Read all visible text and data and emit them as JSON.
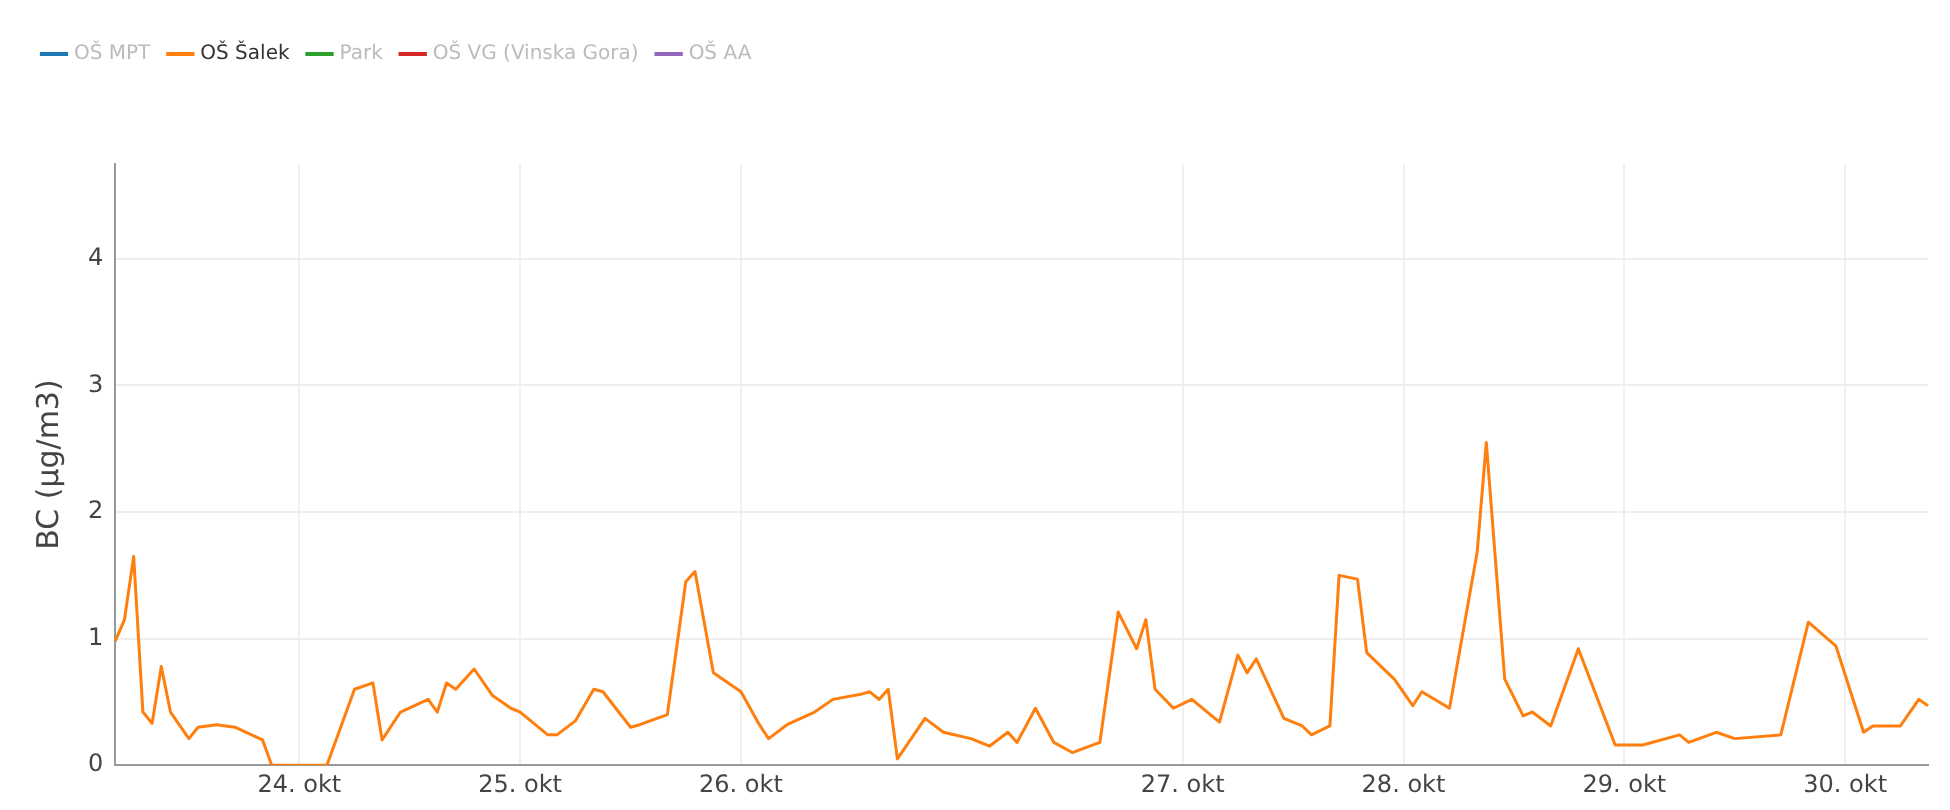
{
  "chart_data": {
    "type": "line",
    "ylabel": "BC (μg/m3)",
    "legend": "top left",
    "grid": true,
    "marker": "none",
    "line_style": "solid",
    "categories": [
      null,
      null,
      null,
      null,
      null,
      null,
      null,
      null,
      null,
      null,
      null,
      null,
      null,
      null,
      null,
      null,
      null,
      null,
      null,
      null,
      "24. okt",
      null,
      null,
      null,
      null,
      null,
      null,
      null,
      null,
      null,
      null,
      null,
      null,
      null,
      null,
      null,
      null,
      null,
      null,
      null,
      null,
      null,
      null,
      null,
      "25. okt",
      null,
      null,
      null,
      null,
      null,
      null,
      null,
      null,
      null,
      null,
      null,
      null,
      null,
      null,
      null,
      null,
      null,
      null,
      null,
      null,
      null,
      null,
      null,
      "26. okt",
      null,
      null,
      null,
      null,
      null,
      null,
      null,
      null,
      null,
      null,
      null,
      null,
      null,
      null,
      null,
      null,
      null,
      null,
      null,
      null,
      null,
      null,
      null,
      null,
      null,
      null,
      null,
      null,
      null,
      null,
      null,
      null,
      null,
      null,
      null,
      null,
      null,
      null,
      null,
      null,
      null,
      null,
      null,
      null,
      null,
      null,
      null,
      "27. okt",
      null,
      null,
      null,
      null,
      null,
      null,
      null,
      null,
      null,
      null,
      null,
      null,
      null,
      null,
      null,
      null,
      null,
      null,
      null,
      null,
      null,
      null,
      null,
      "28. okt",
      null,
      null,
      null,
      null,
      null,
      null,
      null,
      null,
      null,
      null,
      null,
      null,
      null,
      null,
      null,
      null,
      null,
      null,
      null,
      null,
      null,
      null,
      null,
      "29. okt",
      null,
      null,
      null,
      null,
      null,
      null,
      null,
      null,
      null,
      null,
      null,
      null,
      null,
      null,
      null,
      null,
      null,
      null,
      null,
      null,
      null,
      null,
      null,
      "30. okt",
      null,
      null,
      null,
      null,
      null,
      null,
      null,
      null,
      null
    ],
    "ylim": [
      0,
      4.75
    ],
    "yticks": [
      0,
      1,
      2,
      3,
      4
    ],
    "series": [
      {
        "name": "OŠ MPT",
        "color": "#1f77b4",
        "values": [
          null,
          null,
          null,
          null,
          null,
          null,
          null,
          null,
          null,
          null,
          null,
          null,
          null,
          null,
          null,
          null,
          null,
          null,
          null,
          null,
          null,
          null,
          null,
          null,
          null,
          null,
          null,
          null,
          null,
          null,
          null,
          null,
          null,
          null,
          null,
          null,
          null,
          null,
          null,
          null,
          null,
          null,
          null,
          null,
          null,
          null,
          null,
          null,
          null,
          null,
          null,
          null,
          null,
          null,
          null,
          null,
          null,
          null,
          null,
          null,
          null,
          null,
          null,
          null,
          null,
          null,
          null,
          null,
          null,
          null,
          null,
          null,
          null,
          null,
          null,
          null,
          null,
          null,
          null,
          null,
          null,
          null,
          null,
          null,
          null,
          null,
          null,
          null,
          null,
          null,
          null,
          null,
          null,
          null,
          null,
          null,
          null,
          null,
          null,
          null,
          null,
          null,
          null,
          null,
          null,
          null,
          null,
          null,
          null,
          null,
          null,
          null,
          null,
          null,
          null,
          null,
          null,
          null,
          null,
          null,
          null,
          null,
          null,
          null,
          null,
          null,
          null,
          null,
          null,
          null,
          null,
          null,
          null,
          null,
          null,
          null,
          null,
          null,
          null,
          null,
          null,
          null,
          null,
          null,
          null,
          null,
          null,
          null,
          null,
          null,
          null,
          null,
          null,
          null,
          null,
          null,
          null,
          null,
          null,
          null,
          null,
          null,
          null,
          null,
          null,
          null,
          null,
          null,
          null,
          null,
          null,
          null,
          null,
          null,
          null,
          null,
          null,
          null,
          null,
          null,
          null,
          null,
          null,
          null,
          null,
          null,
          null,
          null,
          null,
          null,
          null,
          null,
          null,
          null,
          null,
          null,
          null,
          null
        ]
      },
      {
        "name": "OŠ Šalek",
        "color": "#ff7f0e",
        "values": [
          0.98,
          1.15,
          1.65,
          0.42,
          0.33,
          0.78,
          0.42,
          null,
          0.21,
          0.3,
          null,
          0.32,
          null,
          0.3,
          null,
          null,
          0.2,
          0,
          null,
          null,
          null,
          null,
          null,
          0,
          null,
          null,
          0.6,
          null,
          0.65,
          0.2,
          null,
          0.42,
          null,
          null,
          0.52,
          0.42,
          0.65,
          0.6,
          null,
          0.76,
          null,
          0.55,
          null,
          0.45,
          0.42,
          null,
          null,
          0.24,
          0.24,
          null,
          0.35,
          null,
          0.6,
          0.58,
          null,
          null,
          0.3,
          0.32,
          null,
          null,
          0.4,
          null,
          1.45,
          1.53,
          null,
          0.73,
          null,
          null,
          0.58,
          null,
          0.32,
          0.21,
          null,
          0.32,
          null,
          null,
          0.42,
          null,
          0.52,
          null,
          null,
          0.56,
          0.58,
          0.52,
          0.6,
          0.05,
          null,
          null,
          0.37,
          null,
          0.26,
          null,
          null,
          0.21,
          null,
          0.15,
          null,
          0.26,
          0.18,
          null,
          0.45,
          null,
          0.18,
          null,
          0.1,
          null,
          null,
          0.18,
          null,
          1.21,
          null,
          0.92,
          1.15,
          0.6,
          null,
          0.45,
          null,
          0.52,
          null,
          null,
          0.34,
          null,
          0.87,
          0.73,
          0.84,
          null,
          null,
          0.37,
          null,
          0.31,
          0.24,
          null,
          0.31,
          1.5,
          null,
          1.47,
          0.89,
          null,
          null,
          0.68,
          null,
          0.47,
          0.58,
          null,
          null,
          0.45,
          null,
          null,
          1.68,
          2.55,
          null,
          0.68,
          null,
          0.39,
          0.42,
          null,
          0.31,
          null,
          null,
          0.92,
          null,
          null,
          null,
          0.16,
          null,
          null,
          0.16,
          null,
          null,
          null,
          0.24,
          0.18,
          null,
          null,
          0.26,
          null,
          0.21,
          null,
          null,
          null,
          null,
          0.24,
          null,
          null,
          1.13,
          null,
          null,
          0.94,
          null,
          null,
          0.26,
          0.31,
          null,
          null,
          0.31,
          null,
          0.52,
          0.47
        ]
      },
      {
        "name": "Park",
        "color": "#2ca02c",
        "values": [
          null,
          null,
          null,
          null,
          null,
          null,
          null,
          null,
          null,
          null,
          null,
          null,
          null,
          null,
          null,
          null,
          null,
          null,
          null,
          null,
          null,
          null,
          null,
          null,
          null,
          null,
          null,
          null,
          null,
          null,
          null,
          null,
          null,
          null,
          null,
          null,
          null,
          null,
          null,
          null,
          null,
          null,
          null,
          null,
          null,
          null,
          null,
          null,
          null,
          null,
          null,
          null,
          null,
          null,
          null,
          null,
          null,
          null,
          null,
          null,
          null,
          null,
          null,
          null,
          null,
          null,
          null,
          null,
          null,
          null,
          null,
          null,
          null,
          null,
          null,
          null,
          null,
          null,
          null,
          null,
          null,
          null,
          null,
          null,
          null,
          null,
          null,
          null,
          null,
          null,
          null,
          null,
          null,
          null,
          null,
          null,
          null,
          null,
          null,
          null,
          null,
          null,
          null,
          null,
          null,
          null,
          null,
          null,
          null,
          null,
          null,
          null,
          null,
          null,
          null,
          null,
          null,
          null,
          null,
          null,
          null,
          null,
          null,
          null,
          null,
          null,
          null,
          null,
          null,
          null,
          null,
          null,
          null,
          null,
          null,
          null,
          null,
          null,
          null,
          null,
          null,
          null,
          null,
          null,
          null,
          null,
          null,
          null,
          null,
          null,
          null,
          null,
          null,
          null,
          null,
          null,
          null,
          null,
          null,
          null,
          null,
          null,
          null,
          null,
          null,
          null,
          null,
          null,
          null,
          null,
          null,
          null,
          null,
          null,
          null,
          null,
          null,
          null,
          null,
          null,
          null,
          null,
          null,
          null,
          null,
          null,
          null,
          null,
          null,
          null,
          null,
          null,
          null,
          null,
          null,
          null,
          null,
          null
        ]
      },
      {
        "name": "OŠ VG (Vinska Gora)",
        "color": "#d62728",
        "values": [
          null,
          null,
          null,
          null,
          null,
          null,
          null,
          null,
          null,
          null,
          null,
          null,
          null,
          null,
          null,
          null,
          null,
          null,
          null,
          null,
          null,
          null,
          null,
          null,
          null,
          null,
          null,
          null,
          null,
          null,
          null,
          null,
          null,
          null,
          null,
          null,
          null,
          null,
          null,
          null,
          null,
          null,
          null,
          null,
          null,
          null,
          null,
          null,
          null,
          null,
          null,
          null,
          null,
          null,
          null,
          null,
          null,
          null,
          null,
          null,
          null,
          null,
          null,
          null,
          null,
          null,
          null,
          null,
          null,
          null,
          null,
          null,
          null,
          null,
          null,
          null,
          null,
          null,
          null,
          null,
          null,
          null,
          null,
          null,
          null,
          null,
          null,
          null,
          null,
          null,
          null,
          null,
          null,
          null,
          null,
          null,
          null,
          null,
          null,
          null,
          null,
          null,
          null,
          null,
          null,
          null,
          null,
          null,
          null,
          null,
          null,
          null,
          null,
          null,
          null,
          null,
          null,
          null,
          null,
          null,
          null,
          null,
          null,
          null,
          null,
          null,
          null,
          null,
          null,
          null,
          null,
          null,
          null,
          null,
          null,
          null,
          null,
          null,
          null,
          null,
          null,
          null,
          null,
          null,
          null,
          null,
          null,
          null,
          null,
          null,
          null,
          null,
          null,
          null,
          null,
          null,
          null,
          null,
          null,
          null,
          null,
          null,
          null,
          null,
          null,
          null,
          null,
          null,
          null,
          null,
          null,
          null,
          null,
          null,
          null,
          null,
          null,
          null,
          null,
          null,
          null,
          null,
          null,
          null,
          null,
          null,
          null,
          null,
          null,
          null,
          null,
          null,
          null,
          null,
          null,
          null,
          null,
          null
        ]
      },
      {
        "name": "OŠ AA",
        "color": "#9467bd",
        "values": [
          null,
          null,
          null,
          null,
          null,
          null,
          null,
          null,
          null,
          null,
          null,
          null,
          null,
          null,
          null,
          null,
          null,
          null,
          null,
          null,
          null,
          null,
          null,
          null,
          null,
          null,
          null,
          null,
          null,
          null,
          null,
          null,
          null,
          null,
          null,
          null,
          null,
          null,
          null,
          null,
          null,
          null,
          null,
          null,
          null,
          null,
          null,
          null,
          null,
          null,
          null,
          null,
          null,
          null,
          null,
          null,
          null,
          null,
          null,
          null,
          null,
          null,
          null,
          null,
          null,
          null,
          null,
          null,
          null,
          null,
          null,
          null,
          null,
          null,
          null,
          null,
          null,
          null,
          null,
          null,
          null,
          null,
          null,
          null,
          null,
          null,
          null,
          null,
          null,
          null,
          null,
          null,
          null,
          null,
          null,
          null,
          null,
          null,
          null,
          null,
          null,
          null,
          null,
          null,
          null,
          null,
          null,
          null,
          null,
          null,
          null,
          null,
          null,
          null,
          null,
          null,
          null,
          null,
          null,
          null,
          null,
          null,
          null,
          null,
          null,
          null,
          null,
          null,
          null,
          null,
          null,
          null,
          null,
          null,
          null,
          null,
          null,
          null,
          null,
          null,
          null,
          null,
          null,
          null,
          null,
          null,
          null,
          null,
          null,
          null,
          null,
          null,
          null,
          null,
          null,
          null,
          null,
          null,
          null,
          null,
          null,
          null,
          null,
          null,
          null,
          null,
          null,
          null,
          null,
          null,
          null,
          null,
          null,
          null,
          null,
          null,
          null,
          null,
          null,
          null,
          null,
          null,
          null,
          null,
          null,
          null,
          null,
          null,
          null,
          null,
          null,
          null,
          null,
          null,
          null,
          null,
          null,
          null
        ]
      }
    ]
  }
}
